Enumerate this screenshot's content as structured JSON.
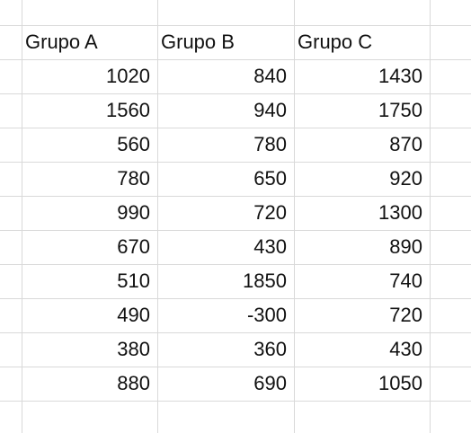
{
  "sheet": {
    "headers": [
      "Grupo A",
      "Grupo B",
      "Grupo C"
    ],
    "rows": [
      [
        "1020",
        "840",
        "1430"
      ],
      [
        "1560",
        "940",
        "1750"
      ],
      [
        "560",
        "780",
        "870"
      ],
      [
        "780",
        "650",
        "920"
      ],
      [
        "990",
        "720",
        "1300"
      ],
      [
        "670",
        "430",
        "890"
      ],
      [
        "510",
        "1850",
        "740"
      ],
      [
        "490",
        "-300",
        "720"
      ],
      [
        "380",
        "360",
        "430"
      ],
      [
        "880",
        "690",
        "1050"
      ]
    ]
  }
}
